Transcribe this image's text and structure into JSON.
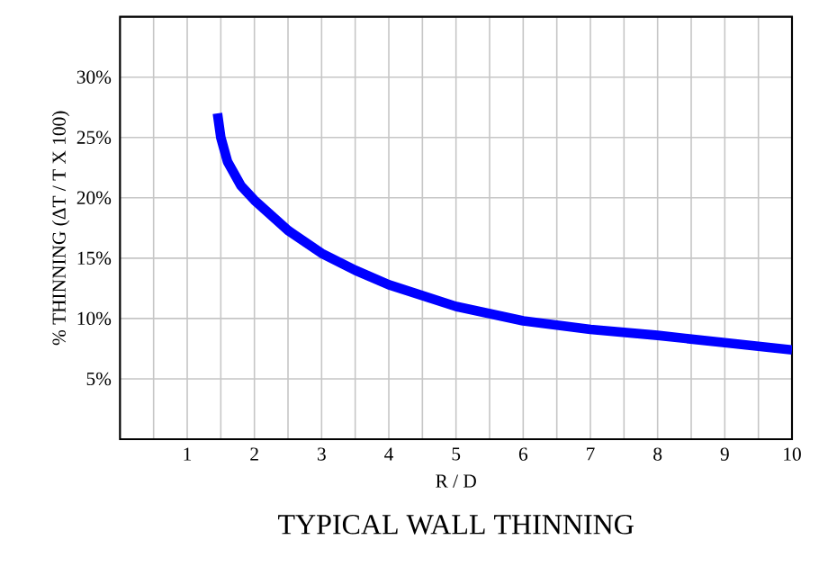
{
  "chart_data": {
    "type": "line",
    "title": "TYPICAL WALL THINNING",
    "xlabel": "R / D",
    "ylabel": "% THINNING (ΔT / T X 100)",
    "x": [
      1.45,
      1.5,
      1.6,
      1.8,
      2,
      2.5,
      3,
      3.5,
      4,
      5,
      6,
      7,
      8,
      9,
      10
    ],
    "series": [
      {
        "color": "#0000ff",
        "values": [
          27,
          25,
          23,
          21,
          19.8,
          17.3,
          15.4,
          14,
          12.8,
          11,
          9.8,
          9.1,
          8.6,
          8,
          7.4
        ]
      }
    ],
    "xlim": [
      0,
      10
    ],
    "xticks": [
      {
        "value": 0,
        "label": null
      },
      {
        "value": 0.5,
        "label": null
      },
      1,
      {
        "value": 1.5,
        "label": null
      },
      2,
      {
        "value": 2.5,
        "label": null
      },
      3,
      {
        "value": 3.5,
        "label": null
      },
      4,
      {
        "value": 4.5,
        "label": null
      },
      5,
      {
        "value": 5.5,
        "label": null
      },
      6,
      {
        "value": 6.5,
        "label": null
      },
      7,
      {
        "value": 7.5,
        "label": null
      },
      8,
      {
        "value": 8.5,
        "label": null
      },
      9,
      {
        "value": 9.5,
        "label": null
      },
      10
    ],
    "ylim": [
      0,
      35
    ],
    "yticks": [
      {
        "value": 0,
        "label": null
      },
      {
        "value": 5,
        "label": "5%"
      },
      {
        "value": 10,
        "label": "10%"
      },
      {
        "value": 15,
        "label": "15%"
      },
      {
        "value": 20,
        "label": "20%"
      },
      {
        "value": 25,
        "label": "25%"
      },
      {
        "value": 30,
        "label": "30%"
      },
      {
        "value": 35,
        "label": null
      }
    ],
    "grid": true,
    "marker": "none",
    "line_style": "solid"
  }
}
